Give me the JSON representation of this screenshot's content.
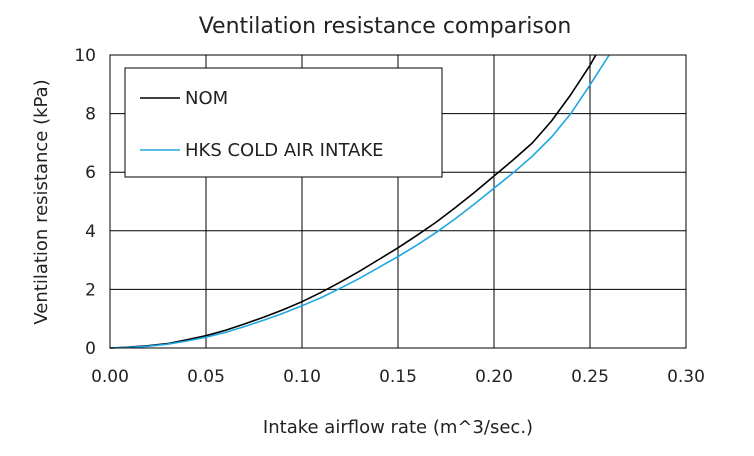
{
  "chart_data": {
    "type": "line",
    "title": "Ventilation resistance comparison",
    "xlabel": "Intake airflow rate (m^3/sec.)",
    "ylabel": "Ventilation resistance (kPa)",
    "xlim": [
      0,
      0.3
    ],
    "ylim": [
      0,
      10
    ],
    "xticks": [
      "0.00",
      "0.05",
      "0.10",
      "0.15",
      "0.20",
      "0.25",
      "0.30"
    ],
    "yticks": [
      "0",
      "2",
      "4",
      "6",
      "8",
      "10"
    ],
    "grid": true,
    "legend_position": "top-left",
    "series": [
      {
        "name": "NOM",
        "color": "#000000",
        "x": [
          0,
          0.01,
          0.02,
          0.03,
          0.04,
          0.05,
          0.06,
          0.07,
          0.08,
          0.09,
          0.1,
          0.11,
          0.12,
          0.13,
          0.14,
          0.15,
          0.16,
          0.17,
          0.18,
          0.19,
          0.2,
          0.21,
          0.22,
          0.23,
          0.24,
          0.25,
          0.253
        ],
        "y": [
          0,
          0.03,
          0.08,
          0.15,
          0.28,
          0.42,
          0.6,
          0.82,
          1.05,
          1.3,
          1.58,
          1.9,
          2.25,
          2.62,
          3.02,
          3.42,
          3.85,
          4.3,
          4.8,
          5.32,
          5.87,
          6.42,
          7.0,
          7.75,
          8.65,
          9.65,
          10.0
        ]
      },
      {
        "name": "HKS COLD AIR INTAKE",
        "color": "#1ea7e0",
        "x": [
          0,
          0.01,
          0.02,
          0.03,
          0.04,
          0.05,
          0.06,
          0.07,
          0.08,
          0.09,
          0.1,
          0.11,
          0.12,
          0.13,
          0.14,
          0.15,
          0.16,
          0.17,
          0.18,
          0.19,
          0.2,
          0.21,
          0.22,
          0.23,
          0.24,
          0.25,
          0.26
        ],
        "y": [
          0,
          0.02,
          0.06,
          0.13,
          0.24,
          0.37,
          0.53,
          0.73,
          0.95,
          1.18,
          1.44,
          1.72,
          2.04,
          2.38,
          2.75,
          3.12,
          3.52,
          3.95,
          4.42,
          4.92,
          5.45,
          5.98,
          6.55,
          7.2,
          8.0,
          8.98,
          10.0
        ]
      }
    ]
  }
}
